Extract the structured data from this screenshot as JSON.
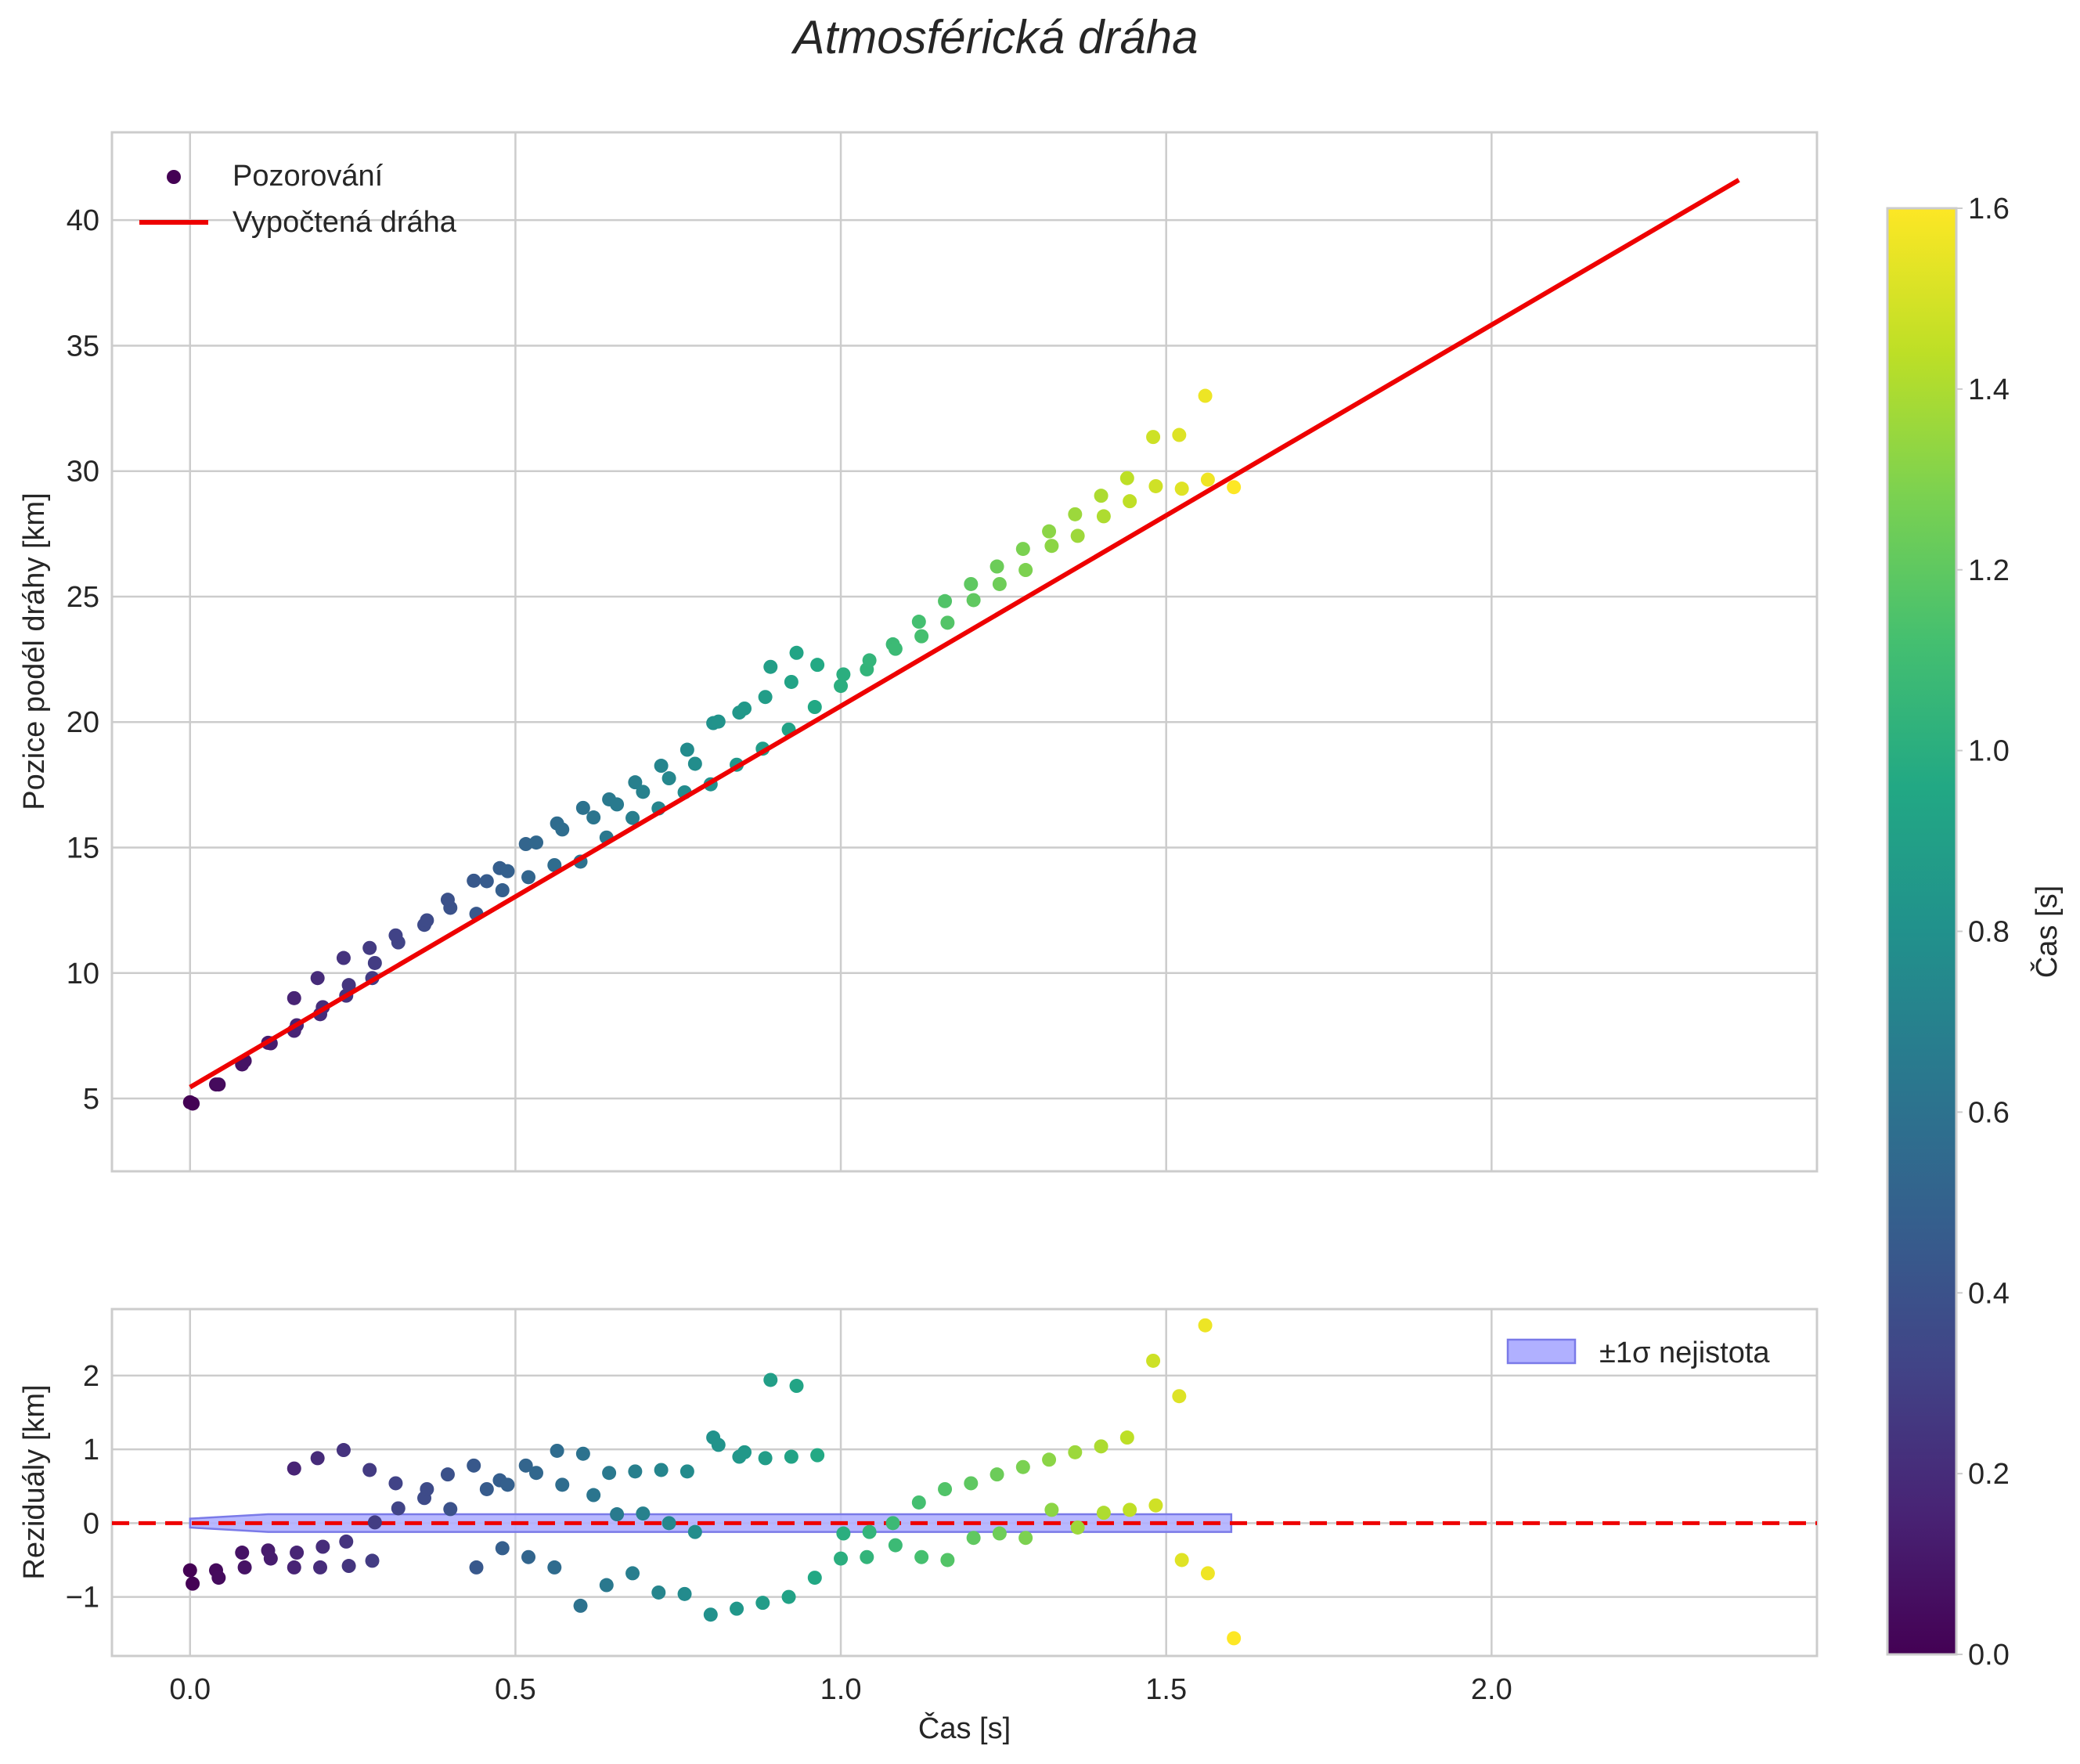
{
  "figure": {
    "title": "Atmosférická dráha",
    "colors": {
      "fit_line": "#ee0000",
      "zero_line": "#ee0000",
      "band_fill": "#b0b0ff",
      "band_edge": "#7a7ae8"
    }
  },
  "chart_data": [
    {
      "type": "scatter",
      "title": "Atmosférická dráha",
      "xlabel": "",
      "ylabel": "Pozice podél dráhy [km]",
      "xlim": [
        -0.12,
        2.5
      ],
      "ylim": [
        2.1,
        43.5
      ],
      "xticks": [
        0.0,
        0.5,
        1.0,
        1.5,
        2.0
      ],
      "yticks": [
        5,
        10,
        15,
        20,
        25,
        30,
        35,
        40
      ],
      "ytick_labels": [
        "5",
        "10",
        "15",
        "20",
        "25",
        "30",
        "35",
        "40"
      ],
      "grid": true,
      "legend": {
        "placement": "top-left",
        "entries": [
          "Pozorování",
          "Vypočtená dráha"
        ]
      },
      "series": [
        {
          "name": "Pozorování",
          "kind": "scatter",
          "color_by": "x",
          "points": [
            [
              0.0,
              4.85
            ],
            [
              0.004,
              4.8
            ],
            [
              0.04,
              5.56
            ],
            [
              0.044,
              5.56
            ],
            [
              0.08,
              6.36
            ],
            [
              0.084,
              6.5
            ],
            [
              0.12,
              7.22
            ],
            [
              0.124,
              7.2
            ],
            [
              0.16,
              7.7
            ],
            [
              0.164,
              7.92
            ],
            [
              0.16,
              9.0
            ],
            [
              0.2,
              8.36
            ],
            [
              0.204,
              8.64
            ],
            [
              0.196,
              9.8
            ],
            [
              0.24,
              9.1
            ],
            [
              0.244,
              9.52
            ],
            [
              0.236,
              10.6
            ],
            [
              0.28,
              9.8
            ],
            [
              0.284,
              10.4
            ],
            [
              0.276,
              11.0
            ],
            [
              0.32,
              11.22
            ],
            [
              0.316,
              11.5
            ],
            [
              0.36,
              11.92
            ],
            [
              0.364,
              12.1
            ],
            [
              0.4,
              12.6
            ],
            [
              0.396,
              12.92
            ],
            [
              0.44,
              12.36
            ],
            [
              0.436,
              13.68
            ],
            [
              0.456,
              13.66
            ],
            [
              0.48,
              13.3
            ],
            [
              0.476,
              14.18
            ],
            [
              0.488,
              14.06
            ],
            [
              0.52,
              13.82
            ],
            [
              0.516,
              15.14
            ],
            [
              0.532,
              15.2
            ],
            [
              0.56,
              14.3
            ],
            [
              0.564,
              15.96
            ],
            [
              0.572,
              15.72
            ],
            [
              0.6,
              14.44
            ],
            [
              0.604,
              16.58
            ],
            [
              0.62,
              16.2
            ],
            [
              0.64,
              15.4
            ],
            [
              0.644,
              16.92
            ],
            [
              0.656,
              16.72
            ],
            [
              0.68,
              16.18
            ],
            [
              0.684,
              17.6
            ],
            [
              0.696,
              17.22
            ],
            [
              0.72,
              16.56
            ],
            [
              0.724,
              18.26
            ],
            [
              0.736,
              17.76
            ],
            [
              0.76,
              17.2
            ],
            [
              0.764,
              18.9
            ],
            [
              0.776,
              18.34
            ],
            [
              0.8,
              17.52
            ],
            [
              0.804,
              19.96
            ],
            [
              0.812,
              20.02
            ],
            [
              0.84,
              18.3
            ],
            [
              0.844,
              20.38
            ],
            [
              0.852,
              20.54
            ],
            [
              0.88,
              18.94
            ],
            [
              0.884,
              21.0
            ],
            [
              0.892,
              22.2
            ],
            [
              0.92,
              19.7
            ],
            [
              0.924,
              21.6
            ],
            [
              0.932,
              22.76
            ],
            [
              0.96,
              20.6
            ],
            [
              0.964,
              22.28
            ],
            [
              1.0,
              21.44
            ],
            [
              1.004,
              21.9
            ],
            [
              1.04,
              22.1
            ],
            [
              1.044,
              22.46
            ],
            [
              1.08,
              23.1
            ],
            [
              1.084,
              22.92
            ],
            [
              1.12,
              24.0
            ],
            [
              1.124,
              23.42
            ],
            [
              1.16,
              24.82
            ],
            [
              1.164,
              23.96
            ],
            [
              1.2,
              25.5
            ],
            [
              1.204,
              24.86
            ],
            [
              1.24,
              26.2
            ],
            [
              1.244,
              25.5
            ],
            [
              1.28,
              26.9
            ],
            [
              1.284,
              26.06
            ],
            [
              1.32,
              27.6
            ],
            [
              1.324,
              27.02
            ],
            [
              1.36,
              28.28
            ],
            [
              1.364,
              27.42
            ],
            [
              1.4,
              29.02
            ],
            [
              1.404,
              28.2
            ],
            [
              1.44,
              29.72
            ],
            [
              1.444,
              28.8
            ],
            [
              1.48,
              31.36
            ],
            [
              1.484,
              29.4
            ],
            [
              1.52,
              31.44
            ],
            [
              1.524,
              29.3
            ],
            [
              1.56,
              33.0
            ],
            [
              1.564,
              29.66
            ],
            [
              1.604,
              29.36
            ]
          ]
        },
        {
          "name": "Vypočtená dráha",
          "kind": "line",
          "x": [
            0.0,
            2.38
          ],
          "y": [
            5.45,
            41.6
          ]
        }
      ]
    },
    {
      "type": "scatter",
      "xlabel": "Čas [s]",
      "ylabel": "Reziduály [km]",
      "xlim": [
        -0.12,
        2.5
      ],
      "ylim": [
        -1.8,
        2.9
      ],
      "xticks": [
        0.0,
        0.5,
        1.0,
        1.5,
        2.0
      ],
      "xtick_labels": [
        "0.0",
        "0.5",
        "1.0",
        "1.5",
        "2.0"
      ],
      "yticks": [
        -1,
        0,
        1,
        2
      ],
      "ytick_labels": [
        "−1",
        "0",
        "1",
        "2"
      ],
      "grid": true,
      "legend": {
        "placement": "top-right",
        "entries": [
          "±1σ nejistota"
        ]
      },
      "series": [
        {
          "name": "Reziduály",
          "kind": "scatter",
          "color_by": "x",
          "points": [
            [
              0.0,
              -0.64
            ],
            [
              0.004,
              -0.82
            ],
            [
              0.04,
              -0.64
            ],
            [
              0.044,
              -0.74
            ],
            [
              0.08,
              -0.4
            ],
            [
              0.084,
              -0.6
            ],
            [
              0.12,
              -0.37
            ],
            [
              0.124,
              -0.48
            ],
            [
              0.16,
              -0.6
            ],
            [
              0.164,
              -0.4
            ],
            [
              0.16,
              0.74
            ],
            [
              0.2,
              -0.6
            ],
            [
              0.204,
              -0.32
            ],
            [
              0.196,
              0.88
            ],
            [
              0.24,
              -0.25
            ],
            [
              0.244,
              -0.58
            ],
            [
              0.236,
              0.99
            ],
            [
              0.28,
              -0.51
            ],
            [
              0.284,
              0.01
            ],
            [
              0.276,
              0.72
            ],
            [
              0.32,
              0.2
            ],
            [
              0.316,
              0.54
            ],
            [
              0.36,
              0.34
            ],
            [
              0.364,
              0.46
            ],
            [
              0.4,
              0.19
            ],
            [
              0.396,
              0.66
            ],
            [
              0.44,
              -0.6
            ],
            [
              0.436,
              0.78
            ],
            [
              0.456,
              0.46
            ],
            [
              0.48,
              -0.34
            ],
            [
              0.476,
              0.58
            ],
            [
              0.488,
              0.52
            ],
            [
              0.52,
              -0.46
            ],
            [
              0.516,
              0.78
            ],
            [
              0.532,
              0.68
            ],
            [
              0.56,
              -0.6
            ],
            [
              0.564,
              0.98
            ],
            [
              0.572,
              0.52
            ],
            [
              0.6,
              -1.12
            ],
            [
              0.604,
              0.94
            ],
            [
              0.62,
              0.38
            ],
            [
              0.64,
              -0.84
            ],
            [
              0.644,
              0.68
            ],
            [
              0.656,
              0.12
            ],
            [
              0.68,
              -0.68
            ],
            [
              0.684,
              0.7
            ],
            [
              0.696,
              0.13
            ],
            [
              0.72,
              -0.94
            ],
            [
              0.724,
              0.72
            ],
            [
              0.736,
              0.0
            ],
            [
              0.76,
              -0.96
            ],
            [
              0.764,
              0.7
            ],
            [
              0.776,
              -0.12
            ],
            [
              0.8,
              -1.24
            ],
            [
              0.804,
              1.16
            ],
            [
              0.812,
              1.06
            ],
            [
              0.84,
              -1.16
            ],
            [
              0.844,
              0.9
            ],
            [
              0.852,
              0.96
            ],
            [
              0.88,
              -1.08
            ],
            [
              0.884,
              0.88
            ],
            [
              0.892,
              1.94
            ],
            [
              0.92,
              -1.0
            ],
            [
              0.924,
              0.9
            ],
            [
              0.932,
              1.86
            ],
            [
              0.96,
              -0.74
            ],
            [
              0.964,
              0.92
            ],
            [
              1.0,
              -0.48
            ],
            [
              1.004,
              -0.14
            ],
            [
              1.04,
              -0.46
            ],
            [
              1.044,
              -0.12
            ],
            [
              1.08,
              0.0
            ],
            [
              1.084,
              -0.3
            ],
            [
              1.12,
              0.28
            ],
            [
              1.124,
              -0.46
            ],
            [
              1.16,
              0.46
            ],
            [
              1.164,
              -0.5
            ],
            [
              1.2,
              0.54
            ],
            [
              1.204,
              -0.2
            ],
            [
              1.24,
              0.66
            ],
            [
              1.244,
              -0.14
            ],
            [
              1.28,
              0.76
            ],
            [
              1.284,
              -0.2
            ],
            [
              1.32,
              0.86
            ],
            [
              1.324,
              0.18
            ],
            [
              1.36,
              0.96
            ],
            [
              1.364,
              -0.06
            ],
            [
              1.4,
              1.04
            ],
            [
              1.404,
              0.14
            ],
            [
              1.44,
              1.16
            ],
            [
              1.444,
              0.18
            ],
            [
              1.48,
              2.2
            ],
            [
              1.484,
              0.24
            ],
            [
              1.52,
              1.72
            ],
            [
              1.524,
              -0.5
            ],
            [
              1.56,
              2.68
            ],
            [
              1.564,
              -0.68
            ],
            [
              1.604,
              -1.56
            ]
          ]
        },
        {
          "name": "±1σ nejistota",
          "kind": "band",
          "x": [
            0.0,
            0.12,
            1.6
          ],
          "upper": [
            0.06,
            0.12,
            0.12
          ],
          "lower": [
            -0.06,
            -0.12,
            -0.12
          ]
        },
        {
          "name": "zero",
          "kind": "hline",
          "y": 0
        }
      ]
    },
    {
      "type": "colorbar",
      "label": "Čas [s]",
      "colormap": "viridis",
      "range": [
        0.0,
        1.6
      ],
      "ticks": [
        "0.0",
        "0.2",
        "0.4",
        "0.6",
        "0.8",
        "1.0",
        "1.2",
        "1.4",
        "1.6"
      ]
    }
  ]
}
